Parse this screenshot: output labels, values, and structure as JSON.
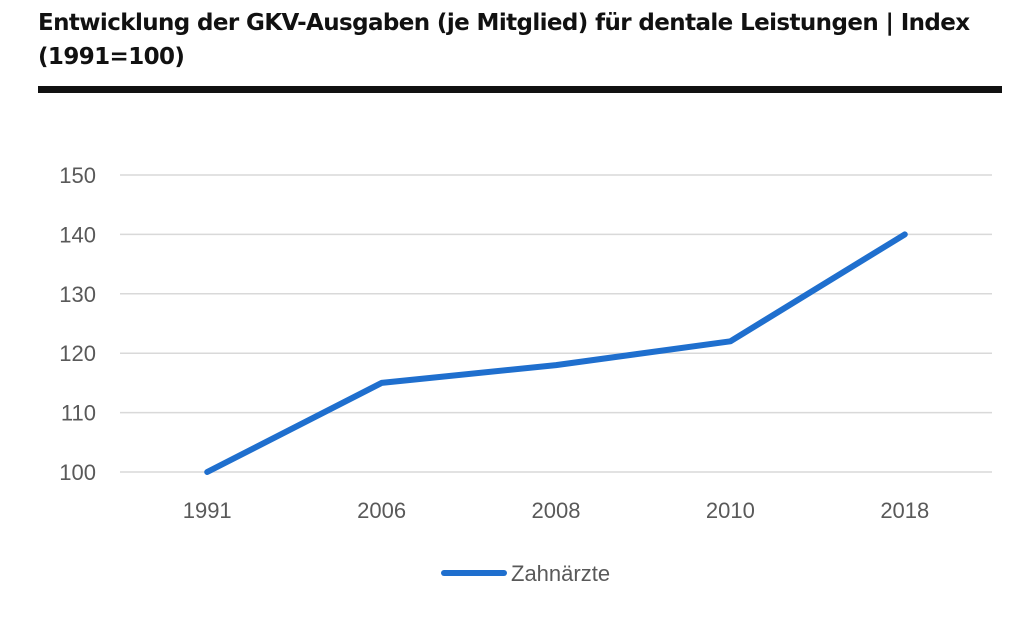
{
  "title": "Entwicklung der GKV-Ausgaben (je Mitglied) für dentale Leistungen | Index (1991=100)",
  "chart_data": {
    "type": "line",
    "title": "Entwicklung der GKV-Ausgaben (je Mitglied) für dentale Leistungen | Index (1991=100)",
    "xlabel": "",
    "ylabel": "",
    "categories": [
      "1991",
      "2006",
      "2008",
      "2010",
      "2018"
    ],
    "series": [
      {
        "name": "Zahnärzte",
        "values": [
          100,
          115,
          118,
          122,
          140
        ],
        "color": "#1f6fce"
      }
    ],
    "ylim": [
      100,
      150
    ],
    "yticks": [
      100,
      110,
      120,
      130,
      140,
      150
    ],
    "grid": true,
    "gridColor": "#d9d9d9",
    "legend": "bottom"
  }
}
